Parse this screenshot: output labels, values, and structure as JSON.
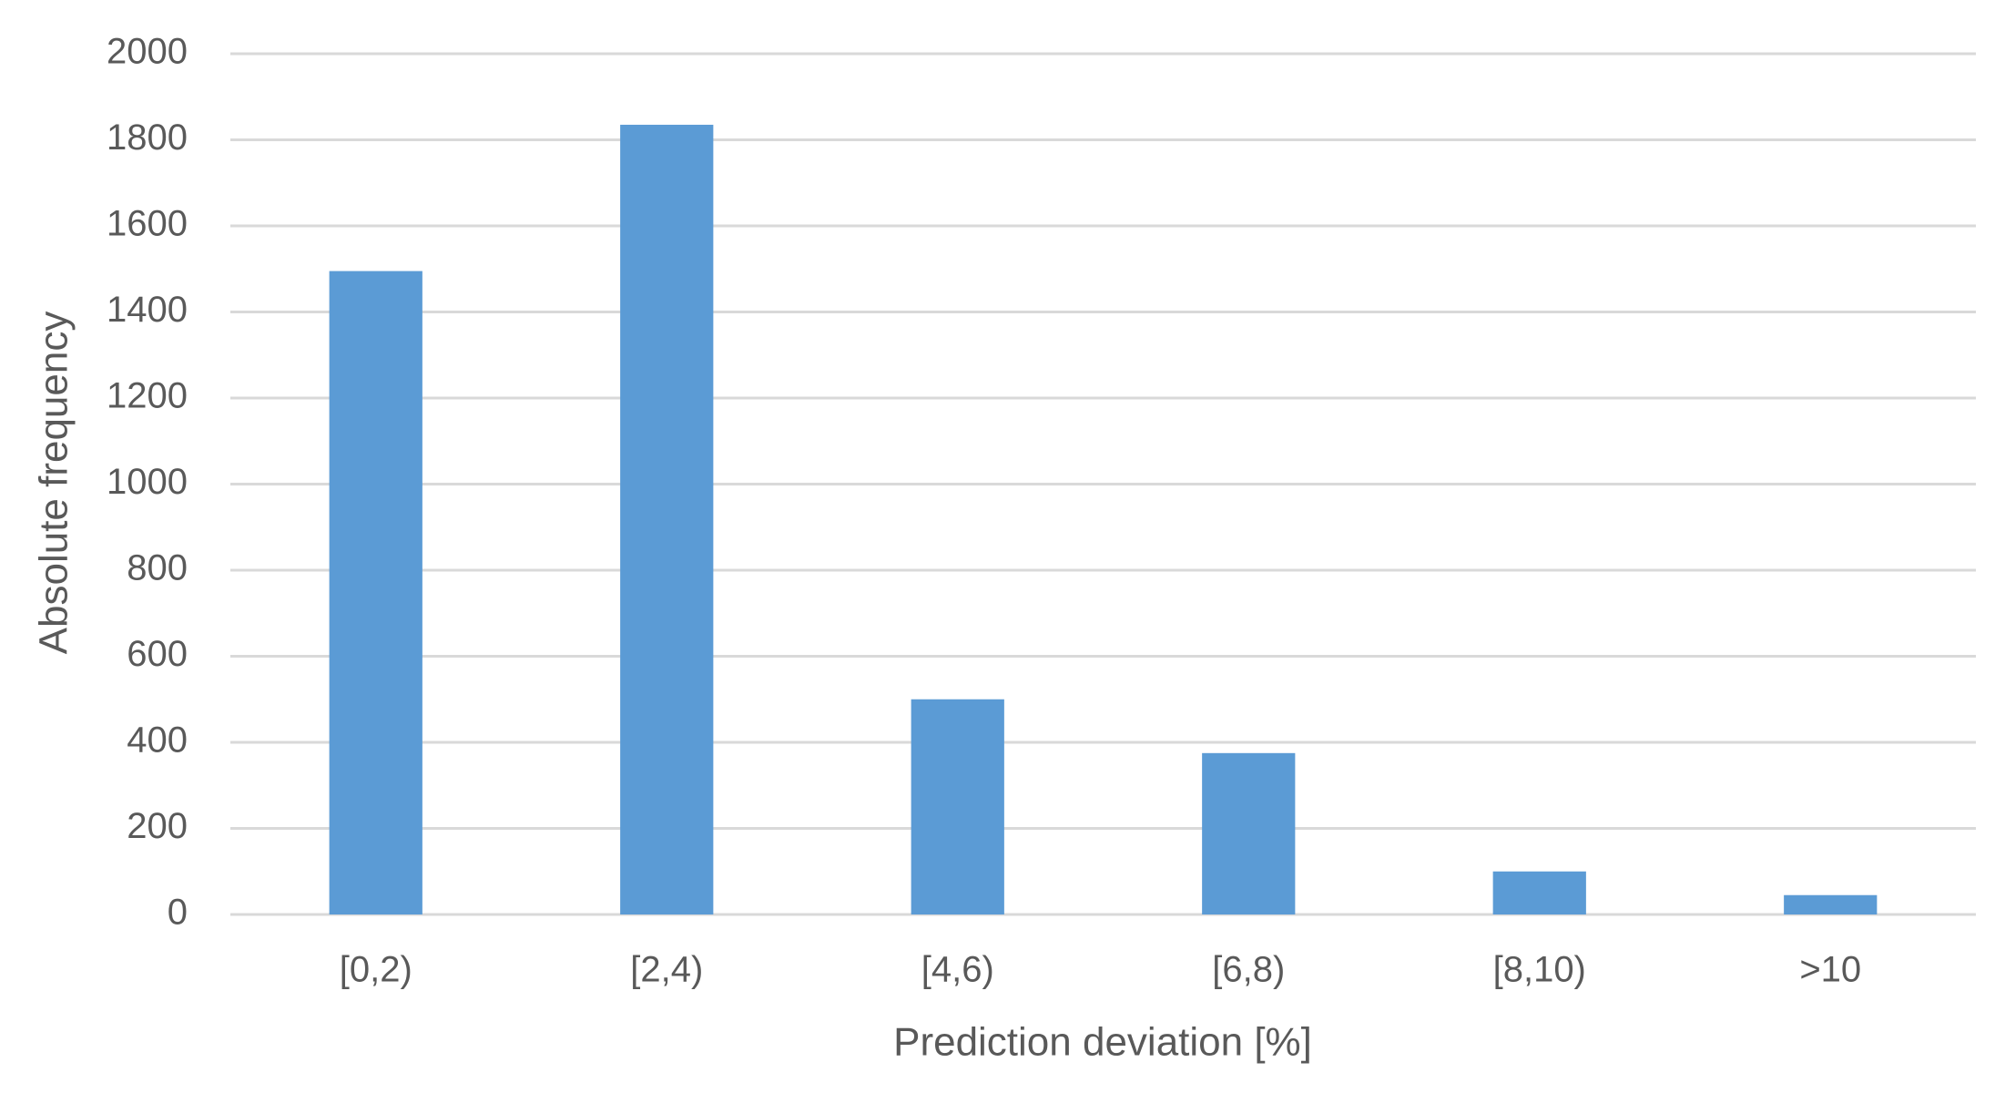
{
  "chart_data": {
    "type": "bar",
    "x_label": "Prediction deviation [%]",
    "y_label": "Absolute frequency",
    "categories": [
      "[0,2)",
      "[2,4)",
      "[4,6)",
      "[6,8)",
      "[8,10)",
      ">10"
    ],
    "values": [
      1495,
      1835,
      500,
      375,
      100,
      45
    ],
    "color": "#5b9bd5",
    "ylim": [
      0,
      2000
    ],
    "yticks": [
      0,
      200,
      400,
      600,
      800,
      1000,
      1200,
      1400,
      1600,
      1800,
      2000
    ],
    "grid": true
  }
}
